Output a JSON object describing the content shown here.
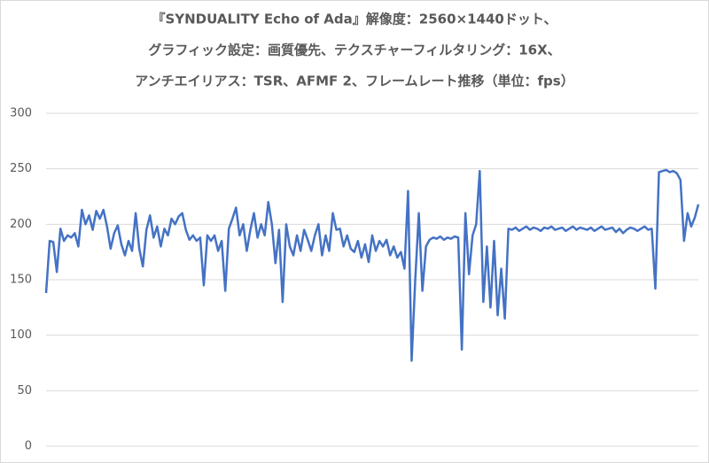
{
  "chart_data": {
    "type": "line",
    "title": [
      "『SYNDUALITY Echo of Ada』解像度：2560×1440ドット、",
      "グラフィック設定：画質優先、テクスチャーフィルタリング：16X、",
      "アンチエイリアス：TSR、AFMF 2、フレームレート推移（単位：fps）"
    ],
    "values": [
      138,
      185,
      184,
      157,
      196,
      185,
      190,
      188,
      192,
      180,
      213,
      200,
      208,
      195,
      212,
      205,
      213,
      198,
      178,
      192,
      199,
      182,
      172,
      185,
      176,
      210,
      178,
      162,
      195,
      208,
      188,
      198,
      180,
      196,
      190,
      205,
      200,
      207,
      210,
      195,
      186,
      190,
      185,
      188,
      145,
      190,
      185,
      190,
      176,
      185,
      140,
      196,
      205,
      215,
      190,
      200,
      176,
      195,
      210,
      188,
      200,
      190,
      220,
      200,
      165,
      195,
      130,
      200,
      180,
      172,
      190,
      176,
      195,
      186,
      176,
      190,
      200,
      172,
      190,
      176,
      210,
      195,
      196,
      180,
      190,
      178,
      175,
      185,
      170,
      182,
      166,
      190,
      176,
      185,
      180,
      186,
      172,
      180,
      170,
      175,
      160,
      230,
      77,
      150,
      210,
      140,
      180,
      186,
      188,
      187,
      189,
      186,
      188,
      187,
      189,
      188,
      87,
      210,
      155,
      190,
      200,
      248,
      130,
      180,
      125,
      185,
      118,
      160,
      115,
      196,
      195,
      197,
      194,
      196,
      198,
      195,
      197,
      196,
      194,
      197,
      196,
      198,
      195,
      196,
      197,
      194,
      196,
      198,
      195,
      197,
      196,
      195,
      197,
      194,
      196,
      198,
      195,
      196,
      197,
      193,
      196,
      192,
      195,
      197,
      196,
      194,
      196,
      198,
      195,
      196,
      142,
      247,
      248,
      249,
      247,
      248,
      246,
      240,
      185,
      210,
      198,
      206,
      218
    ],
    "color": "#4472c4",
    "ylim": [
      0,
      300
    ],
    "yticks": [
      0,
      50,
      100,
      150,
      200,
      250,
      300
    ],
    "grid": true
  }
}
